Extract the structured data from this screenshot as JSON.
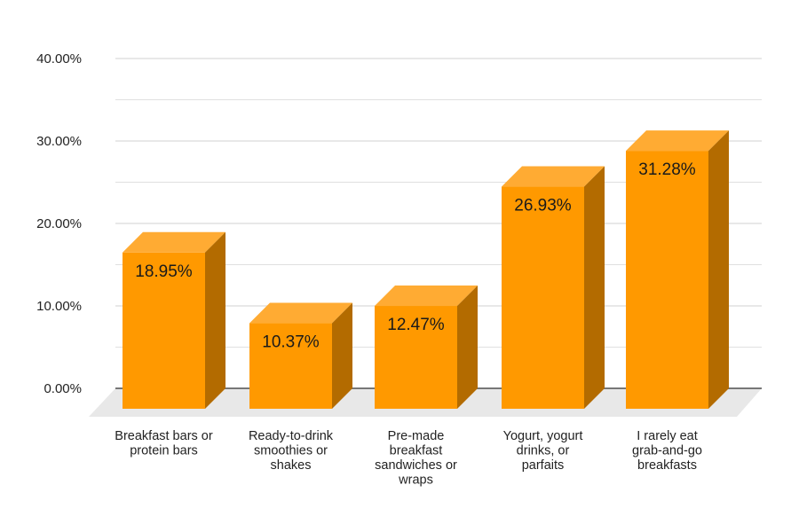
{
  "chart_data": {
    "type": "bar",
    "style": "3d",
    "title": "",
    "xlabel": "",
    "ylabel": "",
    "ylim": [
      0,
      40
    ],
    "yticks": [
      "0.00%",
      "10.00%",
      "20.00%",
      "30.00%",
      "40.00%"
    ],
    "grid": true,
    "categories": [
      [
        "Breakfast bars or",
        "protein bars"
      ],
      [
        "Ready-to-drink",
        "smoothies or",
        "shakes"
      ],
      [
        "Pre-made",
        "breakfast",
        "sandwiches or",
        "wraps"
      ],
      [
        "Yogurt, yogurt",
        "drinks, or",
        "parfaits"
      ],
      [
        "I rarely eat",
        "grab-and-go",
        "breakfasts"
      ]
    ],
    "values": [
      18.95,
      10.37,
      12.47,
      26.93,
      31.28
    ],
    "data_labels": [
      "18.95%",
      "10.37%",
      "12.47%",
      "26.93%",
      "31.28%"
    ],
    "colors": {
      "front": "#ff9900",
      "top": "#ffab33",
      "side": "#b36b00",
      "floor": "#e8e8e8",
      "grid": "#e0e0e0",
      "axis": "#777777"
    }
  }
}
